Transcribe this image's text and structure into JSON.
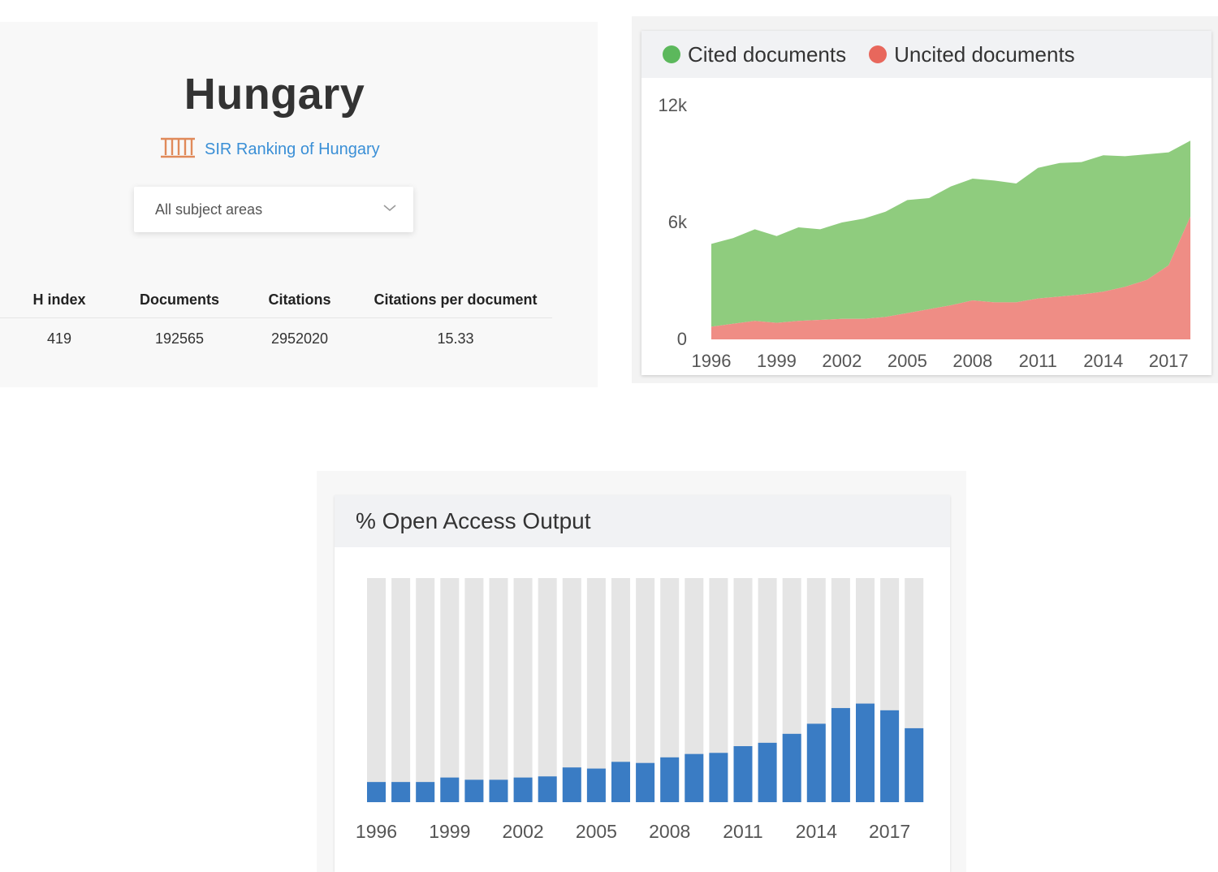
{
  "country": {
    "title": "Hungary",
    "sir_link_label": "SIR Ranking of Hungary",
    "subject_dropdown": {
      "selected": "All subject areas"
    },
    "stats": {
      "headers": [
        "H index",
        "Documents",
        "Citations",
        "Citations per document"
      ],
      "values": [
        "419",
        "192565",
        "2952020",
        "15.33"
      ]
    }
  },
  "colors": {
    "cited": "#8fcc7e",
    "uncited": "#ef8d85",
    "cited_legend": "#5cb85c",
    "uncited_legend": "#e8675c",
    "oa_bar": "#3a7cc4",
    "oa_background_bar": "#e5e5e5",
    "link": "#3a8fd6",
    "sir_icon": "#e08a5a"
  },
  "icons": {
    "sir": "columns-building-icon",
    "dropdown": "chevron-down-icon"
  },
  "chart_data": [
    {
      "id": "cited-uncited",
      "type": "area",
      "stacked": true,
      "x": [
        1996,
        1997,
        1998,
        1999,
        2000,
        2001,
        2002,
        2003,
        2004,
        2005,
        2006,
        2007,
        2008,
        2009,
        2010,
        2011,
        2012,
        2013,
        2014,
        2015,
        2016,
        2017,
        2018
      ],
      "series": [
        {
          "name": "Cited documents",
          "values": [
            4250,
            4400,
            4700,
            4450,
            4800,
            4650,
            4950,
            5150,
            5400,
            5800,
            5700,
            6100,
            6250,
            6250,
            6100,
            6700,
            6850,
            6800,
            7000,
            6700,
            6450,
            5800,
            3900
          ]
        },
        {
          "name": "Uncited documents",
          "values": [
            650,
            800,
            950,
            850,
            950,
            1000,
            1050,
            1050,
            1150,
            1350,
            1550,
            1750,
            2000,
            1900,
            1900,
            2100,
            2200,
            2300,
            2450,
            2700,
            3050,
            3800,
            6300
          ]
        }
      ],
      "x_tick_labels": [
        "1996",
        "1999",
        "2002",
        "2005",
        "2008",
        "2011",
        "2014",
        "2017"
      ],
      "y_tick_labels": [
        "0",
        "6k",
        "12k"
      ],
      "ylim": [
        0,
        12500
      ],
      "grid": false,
      "legend_position": "top-left"
    },
    {
      "id": "open-access",
      "type": "bar",
      "title": "% Open Access Output",
      "categories": [
        "1996",
        "1997",
        "1998",
        "1999",
        "2000",
        "2001",
        "2002",
        "2003",
        "2004",
        "2005",
        "2006",
        "2007",
        "2008",
        "2009",
        "2010",
        "2011",
        "2012",
        "2013",
        "2014",
        "2015",
        "2016",
        "2017",
        "2018"
      ],
      "values": [
        9,
        9,
        9,
        11,
        10,
        10,
        11,
        11.5,
        15.5,
        15,
        18,
        17.5,
        20,
        21.5,
        22,
        25,
        26.5,
        30.5,
        35,
        42,
        44,
        41,
        33
      ],
      "x_tick_labels": [
        "1996",
        "1999",
        "2002",
        "2005",
        "2008",
        "2011",
        "2014",
        "2017"
      ],
      "ylim": [
        0,
        100
      ],
      "grid": false
    }
  ]
}
